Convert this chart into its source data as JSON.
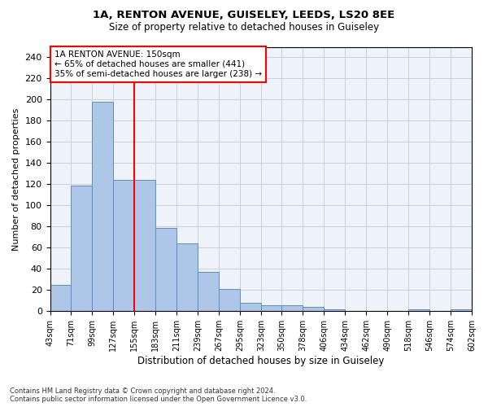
{
  "title1": "1A, RENTON AVENUE, GUISELEY, LEEDS, LS20 8EE",
  "title2": "Size of property relative to detached houses in Guiseley",
  "xlabel": "Distribution of detached houses by size in Guiseley",
  "ylabel": "Number of detached properties",
  "bar_edges": [
    43,
    71,
    99,
    127,
    155,
    183,
    211,
    239,
    267,
    295,
    323,
    350,
    378,
    406,
    434,
    462,
    490,
    518,
    546,
    574,
    602
  ],
  "bar_heights": [
    25,
    119,
    198,
    124,
    124,
    79,
    64,
    37,
    21,
    8,
    6,
    6,
    4,
    2,
    0,
    0,
    0,
    2,
    0,
    2
  ],
  "bar_color": "#aec6e8",
  "bar_edgecolor": "#5a8fc2",
  "vline_x": 155,
  "vline_color": "red",
  "annotation_text": "1A RENTON AVENUE: 150sqm\n← 65% of detached houses are smaller (441)\n35% of semi-detached houses are larger (238) →",
  "annotation_box_edgecolor": "red",
  "annotation_box_facecolor": "white",
  "ylim": [
    0,
    250
  ],
  "yticks": [
    0,
    20,
    40,
    60,
    80,
    100,
    120,
    140,
    160,
    180,
    200,
    220,
    240
  ],
  "tick_labels": [
    "43sqm",
    "71sqm",
    "99sqm",
    "127sqm",
    "155sqm",
    "183sqm",
    "211sqm",
    "239sqm",
    "267sqm",
    "295sqm",
    "323sqm",
    "350sqm",
    "378sqm",
    "406sqm",
    "434sqm",
    "462sqm",
    "490sqm",
    "518sqm",
    "546sqm",
    "574sqm",
    "602sqm"
  ],
  "footer_text": "Contains HM Land Registry data © Crown copyright and database right 2024.\nContains public sector information licensed under the Open Government Licence v3.0.",
  "background_color": "#eef2f9",
  "grid_color": "#c8d0e0"
}
